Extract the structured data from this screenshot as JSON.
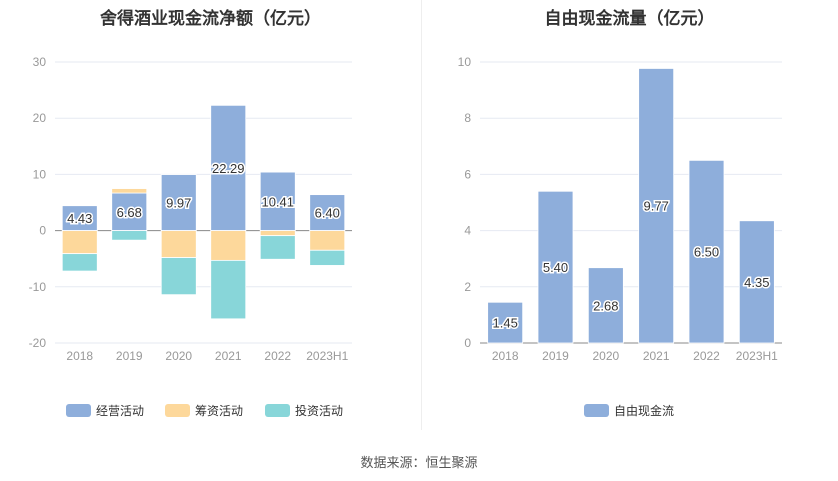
{
  "chart_data": [
    {
      "type": "bar",
      "stacked": true,
      "title": "舍得酒业现金流净额（亿元）",
      "categories": [
        "2018",
        "2019",
        "2020",
        "2021",
        "2022",
        "2023H1"
      ],
      "ylim": [
        -20,
        30
      ],
      "yticks": [
        -20,
        -10,
        0,
        10,
        20,
        30
      ],
      "legend_position": "bottom",
      "series": [
        {
          "name": "经营活动",
          "color": "#8eaedb",
          "values": [
            4.43,
            6.68,
            9.97,
            22.29,
            10.41,
            6.4
          ],
          "labels": [
            "4.43",
            "6.68",
            "9.97",
            "22.29",
            "10.41",
            "6.40"
          ]
        },
        {
          "name": "筹资活动",
          "color": "#fdd89b",
          "values": [
            -4.1,
            0.8,
            -4.8,
            -5.3,
            -0.9,
            -3.5
          ]
        },
        {
          "name": "投资活动",
          "color": "#88d6d9",
          "values": [
            -3.1,
            -1.7,
            -6.6,
            -10.4,
            -4.2,
            -2.7
          ]
        }
      ]
    },
    {
      "type": "bar",
      "title": "自由现金流量（亿元）",
      "categories": [
        "2018",
        "2019",
        "2020",
        "2021",
        "2022",
        "2023H1"
      ],
      "ylim": [
        0,
        10
      ],
      "yticks": [
        0,
        2,
        4,
        6,
        8,
        10
      ],
      "legend_position": "bottom",
      "series": [
        {
          "name": "自由现金流",
          "color": "#8eaedb",
          "values": [
            1.45,
            5.4,
            2.68,
            9.77,
            6.5,
            4.35
          ],
          "labels": [
            "1.45",
            "5.40",
            "2.68",
            "9.77",
            "6.50",
            "4.35"
          ]
        }
      ]
    }
  ],
  "source": "数据来源：恒生聚源"
}
